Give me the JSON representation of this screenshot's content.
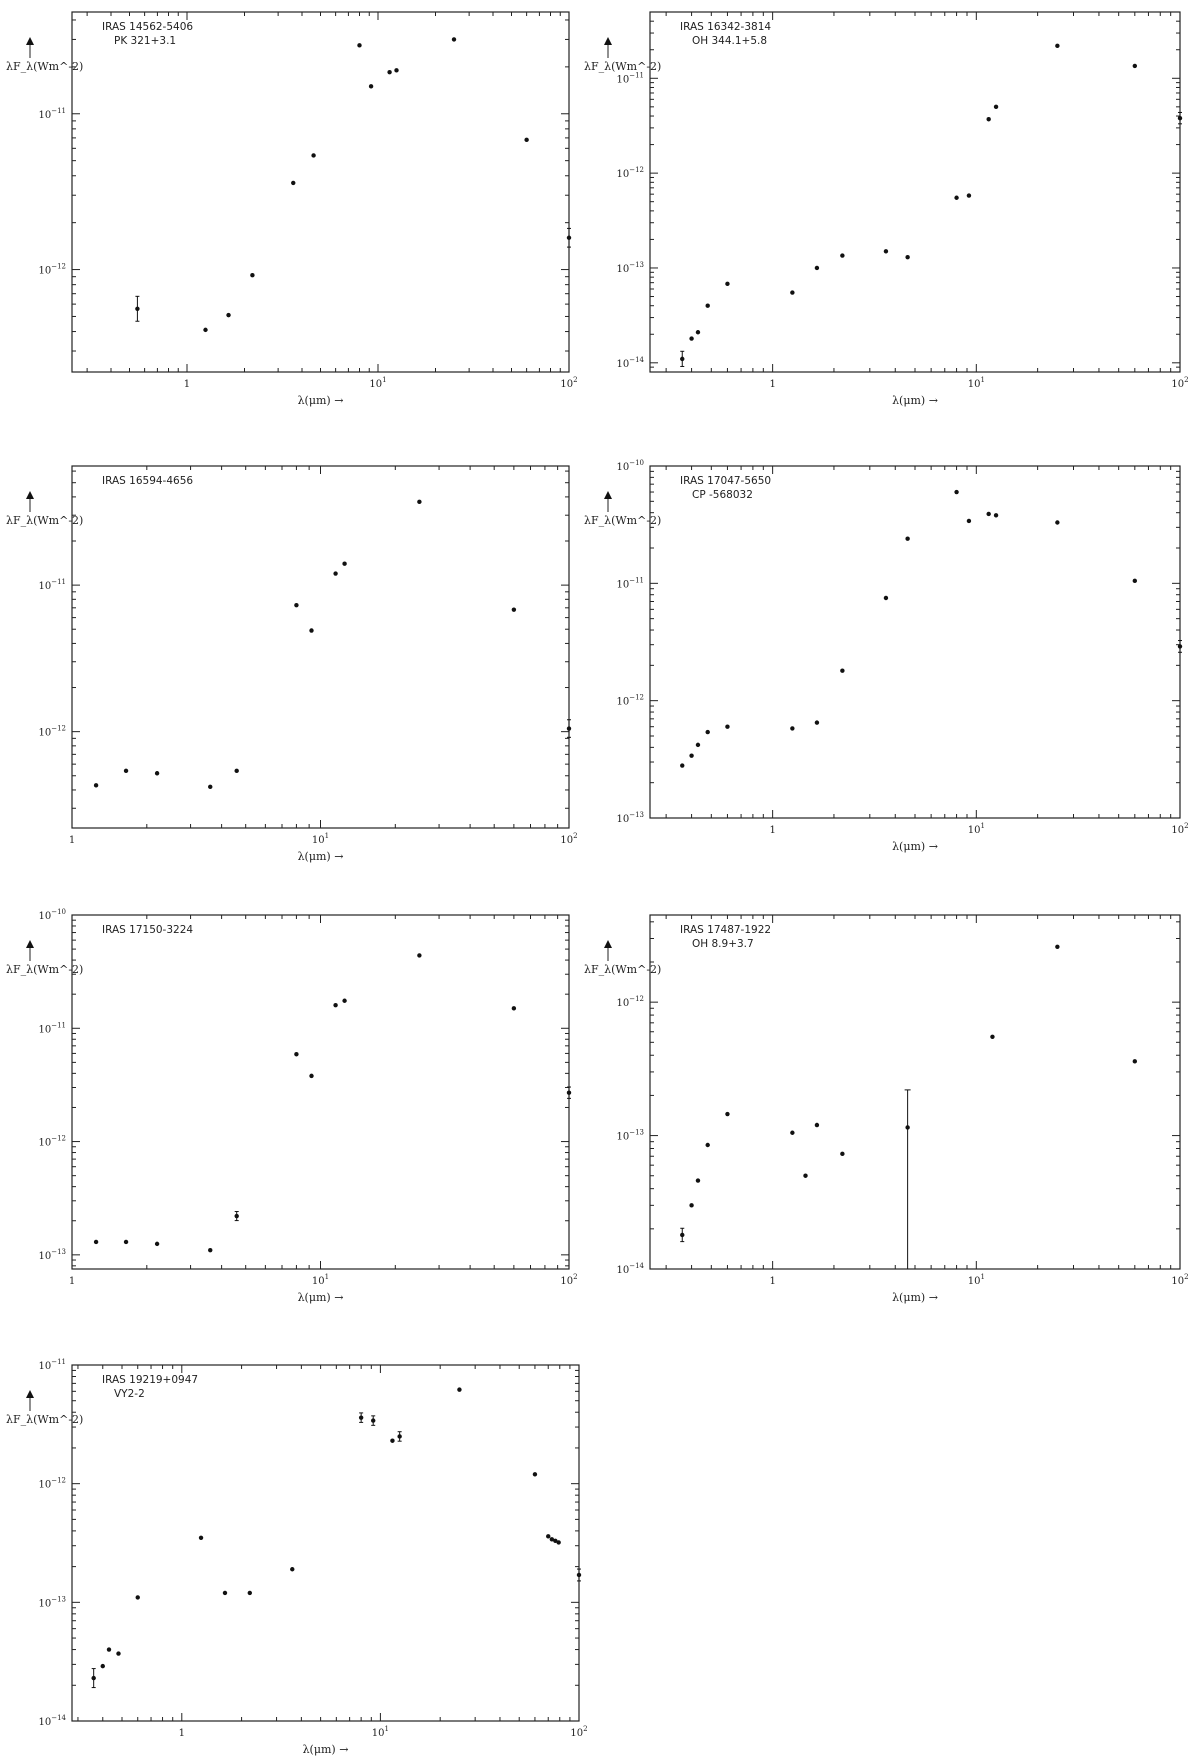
{
  "axis_labels": {
    "x": "λ(μm) →",
    "y": "λF_λ(Wm^-2)"
  },
  "chart_data": [
    {
      "type": "scatter",
      "labels": [
        "IRAS 14562-5406",
        "PK 321+3.1"
      ],
      "x_scale": "log",
      "y_scale": "log",
      "xlim": [
        0.25,
        100
      ],
      "ylim": [
        2.2e-13,
        4.5e-11
      ],
      "xticks": [
        1,
        10,
        100
      ],
      "yticks": [
        1e-12,
        1e-11
      ],
      "points": [
        {
          "x": 0.55,
          "y": 5.6e-13,
          "err": 0.08
        },
        {
          "x": 1.25,
          "y": 4.1e-13
        },
        {
          "x": 1.65,
          "y": 5.1e-13
        },
        {
          "x": 2.2,
          "y": 9.2e-13
        },
        {
          "x": 3.6,
          "y": 3.6e-12
        },
        {
          "x": 4.6,
          "y": 5.4e-12
        },
        {
          "x": 8.0,
          "y": 2.75e-11
        },
        {
          "x": 9.2,
          "y": 1.5e-11
        },
        {
          "x": 11.5,
          "y": 1.85e-11
        },
        {
          "x": 12.5,
          "y": 1.9e-11
        },
        {
          "x": 25,
          "y": 3e-11
        },
        {
          "x": 60,
          "y": 6.8e-12
        },
        {
          "x": 100,
          "y": 1.6e-12,
          "err": 0.06
        }
      ]
    },
    {
      "type": "scatter",
      "labels": [
        "IRAS 16342-3814",
        "OH 344.1+5.8"
      ],
      "x_scale": "log",
      "y_scale": "log",
      "xlim": [
        0.25,
        100
      ],
      "ylim": [
        8e-15,
        5e-11
      ],
      "xticks": [
        1,
        10,
        100
      ],
      "yticks": [
        1e-14,
        1e-13,
        1e-12,
        1e-11
      ],
      "points": [
        {
          "x": 0.36,
          "y": 1.1e-14,
          "err": 0.08
        },
        {
          "x": 0.4,
          "y": 1.8e-14
        },
        {
          "x": 0.43,
          "y": 2.1e-14
        },
        {
          "x": 0.48,
          "y": 4e-14
        },
        {
          "x": 0.6,
          "y": 6.8e-14
        },
        {
          "x": 1.25,
          "y": 5.5e-14
        },
        {
          "x": 1.65,
          "y": 1e-13
        },
        {
          "x": 2.2,
          "y": 1.35e-13
        },
        {
          "x": 3.6,
          "y": 1.5e-13
        },
        {
          "x": 4.6,
          "y": 1.3e-13
        },
        {
          "x": 8.0,
          "y": 5.5e-13
        },
        {
          "x": 9.2,
          "y": 5.8e-13
        },
        {
          "x": 11.5,
          "y": 3.7e-12
        },
        {
          "x": 12.5,
          "y": 5e-12
        },
        {
          "x": 25,
          "y": 2.2e-11
        },
        {
          "x": 60,
          "y": 1.35e-11
        },
        {
          "x": 100,
          "y": 3.8e-12,
          "err": 0.06
        }
      ]
    },
    {
      "type": "scatter",
      "labels": [
        "IRAS 16594-4656"
      ],
      "x_scale": "log",
      "y_scale": "log",
      "xlim": [
        1,
        100
      ],
      "ylim": [
        2.2e-13,
        6.5e-11
      ],
      "xticks": [
        1,
        10,
        100
      ],
      "yticks": [
        1e-12,
        1e-11
      ],
      "points": [
        {
          "x": 1.25,
          "y": 4.3e-13
        },
        {
          "x": 1.65,
          "y": 5.4e-13
        },
        {
          "x": 2.2,
          "y": 5.2e-13
        },
        {
          "x": 3.6,
          "y": 4.2e-13
        },
        {
          "x": 4.6,
          "y": 5.4e-13
        },
        {
          "x": 8.0,
          "y": 7.3e-12
        },
        {
          "x": 9.2,
          "y": 4.9e-12
        },
        {
          "x": 11.5,
          "y": 1.2e-11
        },
        {
          "x": 12.5,
          "y": 1.4e-11
        },
        {
          "x": 25,
          "y": 3.7e-11
        },
        {
          "x": 60,
          "y": 6.8e-12
        },
        {
          "x": 100,
          "y": 1.05e-12,
          "err": 0.06
        }
      ]
    },
    {
      "type": "scatter",
      "labels": [
        "IRAS 17047-5650",
        "CP -568032"
      ],
      "x_scale": "log",
      "y_scale": "log",
      "xlim": [
        0.25,
        100
      ],
      "ylim": [
        1e-13,
        1e-10
      ],
      "xticks": [
        1,
        10,
        100
      ],
      "yticks": [
        1e-13,
        1e-12,
        1e-11,
        1e-10
      ],
      "points": [
        {
          "x": 0.36,
          "y": 2.8e-13
        },
        {
          "x": 0.4,
          "y": 3.4e-13
        },
        {
          "x": 0.43,
          "y": 4.2e-13
        },
        {
          "x": 0.48,
          "y": 5.4e-13
        },
        {
          "x": 0.6,
          "y": 6e-13
        },
        {
          "x": 1.25,
          "y": 5.8e-13
        },
        {
          "x": 1.65,
          "y": 6.5e-13
        },
        {
          "x": 2.2,
          "y": 1.8e-12
        },
        {
          "x": 3.6,
          "y": 7.5e-12
        },
        {
          "x": 4.6,
          "y": 2.4e-11
        },
        {
          "x": 8.0,
          "y": 6e-11
        },
        {
          "x": 9.2,
          "y": 3.4e-11
        },
        {
          "x": 11.5,
          "y": 3.9e-11
        },
        {
          "x": 12.5,
          "y": 3.8e-11
        },
        {
          "x": 25,
          "y": 3.3e-11
        },
        {
          "x": 60,
          "y": 1.05e-11
        },
        {
          "x": 100,
          "y": 2.9e-12,
          "err": 0.05
        }
      ]
    },
    {
      "type": "scatter",
      "labels": [
        "IRAS 17150-3224"
      ],
      "x_scale": "log",
      "y_scale": "log",
      "xlim": [
        1,
        100
      ],
      "ylim": [
        7.5e-14,
        1e-10
      ],
      "xticks": [
        1,
        10,
        100
      ],
      "yticks": [
        1e-13,
        1e-12,
        1e-11,
        1e-10
      ],
      "points": [
        {
          "x": 1.25,
          "y": 1.3e-13
        },
        {
          "x": 1.65,
          "y": 1.3e-13
        },
        {
          "x": 2.2,
          "y": 1.25e-13
        },
        {
          "x": 3.6,
          "y": 1.1e-13
        },
        {
          "x": 4.6,
          "y": 2.2e-13,
          "err": 0.04
        },
        {
          "x": 8.0,
          "y": 5.9e-12
        },
        {
          "x": 9.2,
          "y": 3.8e-12
        },
        {
          "x": 11.5,
          "y": 1.6e-11
        },
        {
          "x": 12.5,
          "y": 1.75e-11
        },
        {
          "x": 25,
          "y": 4.4e-11
        },
        {
          "x": 60,
          "y": 1.5e-11
        },
        {
          "x": 100,
          "y": 2.7e-12,
          "err": 0.05
        }
      ]
    },
    {
      "type": "scatter",
      "labels": [
        "IRAS 17487-1922",
        "OH 8.9+3.7"
      ],
      "x_scale": "log",
      "y_scale": "log",
      "xlim": [
        0.25,
        100
      ],
      "ylim": [
        1e-14,
        4.5e-12
      ],
      "xticks": [
        1,
        10,
        100
      ],
      "yticks": [
        1e-14,
        1e-13,
        1e-12
      ],
      "points": [
        {
          "x": 0.36,
          "y": 1.8e-14,
          "err": 0.05
        },
        {
          "x": 0.4,
          "y": 3e-14
        },
        {
          "x": 0.43,
          "y": 4.6e-14
        },
        {
          "x": 0.48,
          "y": 8.5e-14
        },
        {
          "x": 0.6,
          "y": 1.45e-13
        },
        {
          "x": 1.25,
          "y": 1.05e-13
        },
        {
          "x": 1.45,
          "y": 5e-14
        },
        {
          "x": 1.65,
          "y": 1.2e-13
        },
        {
          "x": 2.2,
          "y": 7.3e-14
        },
        {
          "x": 4.6,
          "y": 1.15e-13,
          "err_up": 2.2e-13,
          "err_down": 1e-14
        },
        {
          "x": 12,
          "y": 5.5e-13
        },
        {
          "x": 25,
          "y": 2.6e-12
        },
        {
          "x": 60,
          "y": 3.6e-13
        }
      ]
    },
    {
      "type": "scatter",
      "labels": [
        "IRAS 19219+0947",
        "VY2-2"
      ],
      "x_scale": "log",
      "y_scale": "log",
      "xlim": [
        0.28,
        100
      ],
      "ylim": [
        1e-14,
        1e-11
      ],
      "xticks": [
        1,
        10,
        100
      ],
      "yticks": [
        1e-14,
        1e-13,
        1e-12,
        1e-11
      ],
      "points": [
        {
          "x": 0.36,
          "y": 2.3e-14,
          "err": 0.08
        },
        {
          "x": 0.4,
          "y": 2.9e-14
        },
        {
          "x": 0.43,
          "y": 4e-14
        },
        {
          "x": 0.48,
          "y": 3.7e-14
        },
        {
          "x": 0.6,
          "y": 1.1e-13
        },
        {
          "x": 1.25,
          "y": 3.5e-13
        },
        {
          "x": 1.65,
          "y": 1.2e-13
        },
        {
          "x": 2.2,
          "y": 1.2e-13
        },
        {
          "x": 3.6,
          "y": 1.9e-13
        },
        {
          "x": 8.0,
          "y": 3.6e-12,
          "err": 0.04
        },
        {
          "x": 9.2,
          "y": 3.4e-12,
          "err": 0.04
        },
        {
          "x": 11.5,
          "y": 2.3e-12
        },
        {
          "x": 12.5,
          "y": 2.5e-12,
          "err": 0.04
        },
        {
          "x": 25,
          "y": 6.2e-12
        },
        {
          "x": 60,
          "y": 1.2e-12
        },
        {
          "x": 70,
          "y": 3.6e-13
        },
        {
          "x": 73,
          "y": 3.4e-13
        },
        {
          "x": 76,
          "y": 3.3e-13
        },
        {
          "x": 79,
          "y": 3.2e-13
        },
        {
          "x": 100,
          "y": 1.7e-13,
          "err": 0.05
        }
      ]
    }
  ]
}
